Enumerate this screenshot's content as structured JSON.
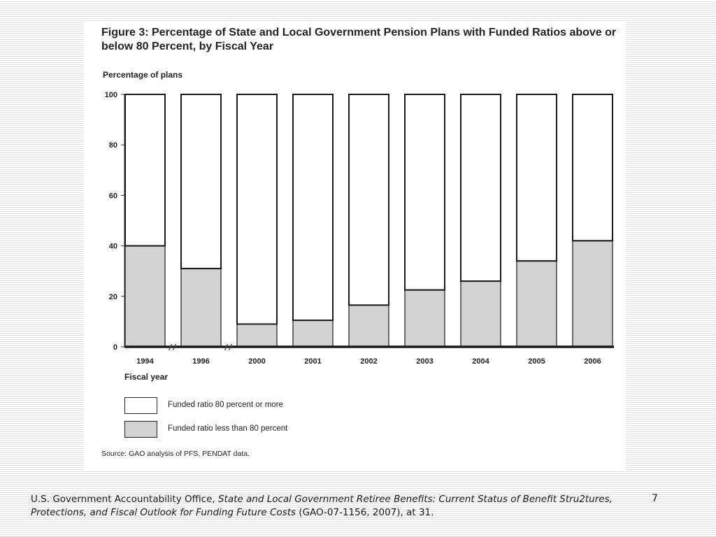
{
  "slide": {
    "page_number": "7",
    "citation": {
      "prefix": "U.S. Government Accountability Office, ",
      "title": "State and Local Government Retiree Benefits:  Current Status of Benefit Stru2tures, Protections, and Fiscal Outlook for Funding Future Costs",
      "suffix": " (GAO-07-1156, 2007), at 31."
    }
  },
  "figure": {
    "title": "Figure 3: Percentage of State and Local Government Pension Plans with Funded Ratios above or below 80 Percent, by Fiscal Year",
    "source": "Source: GAO analysis of PFS, PENDAT data."
  },
  "chart_data": {
    "type": "bar",
    "stacked": true,
    "ylabel": "Percentage of plans",
    "xlabel": "Fiscal year",
    "ylim": [
      0,
      100
    ],
    "yticks": [
      0,
      20,
      40,
      60,
      80,
      100
    ],
    "categories": [
      "1994",
      "1996",
      "2000",
      "2001",
      "2002",
      "2003",
      "2004",
      "2005",
      "2006"
    ],
    "axis_breaks_after": [
      "1994",
      "1996"
    ],
    "series": [
      {
        "name": "Funded ratio less than 80 percent",
        "color": "#d3d3d3",
        "values": [
          40,
          31,
          9,
          10.5,
          16.5,
          22.5,
          26,
          34,
          42
        ]
      },
      {
        "name": "Funded ratio 80 percent or more",
        "color": "#ffffff",
        "values": [
          60,
          69,
          91,
          89.5,
          83.5,
          77.5,
          74,
          66,
          58
        ]
      }
    ],
    "legend_position": "bottom-left",
    "grid": false
  }
}
